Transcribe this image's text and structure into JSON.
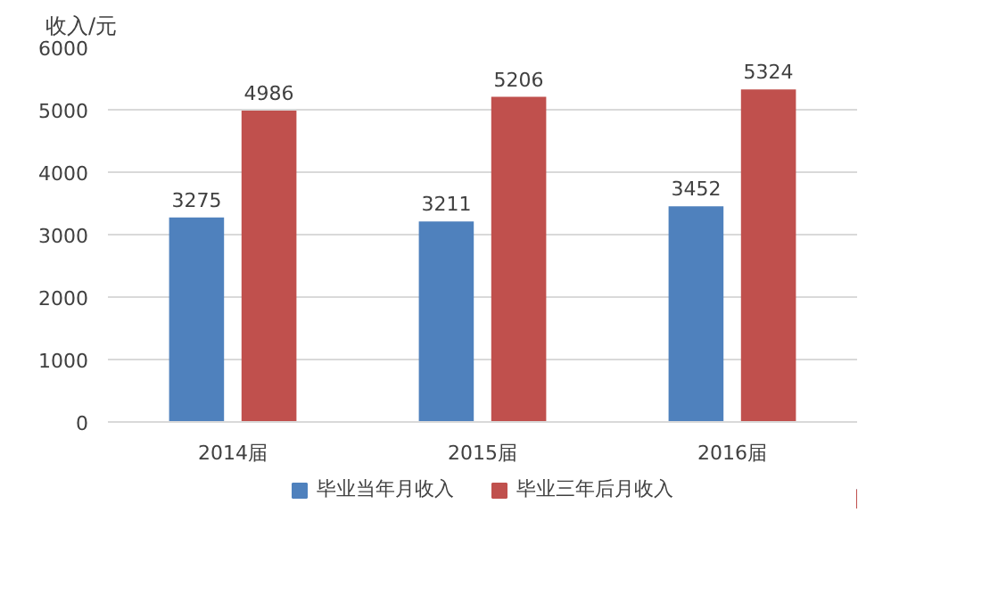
{
  "chart_data": {
    "type": "bar",
    "ylabel": "收入/元",
    "categories": [
      "2014届",
      "2015届",
      "2016届"
    ],
    "series": [
      {
        "name": "毕业当年月收入",
        "color": "#4f81bd",
        "values": [
          3275,
          3211,
          3452
        ]
      },
      {
        "name": "毕业三年后月收入",
        "color": "#c0504d",
        "values": [
          4986,
          5206,
          5324
        ]
      }
    ],
    "ylim": [
      0,
      6000
    ],
    "yticks": [
      0,
      1000,
      2000,
      3000,
      4000,
      5000,
      6000
    ],
    "grid": "y",
    "legend": "bottom",
    "data_labels": true
  }
}
